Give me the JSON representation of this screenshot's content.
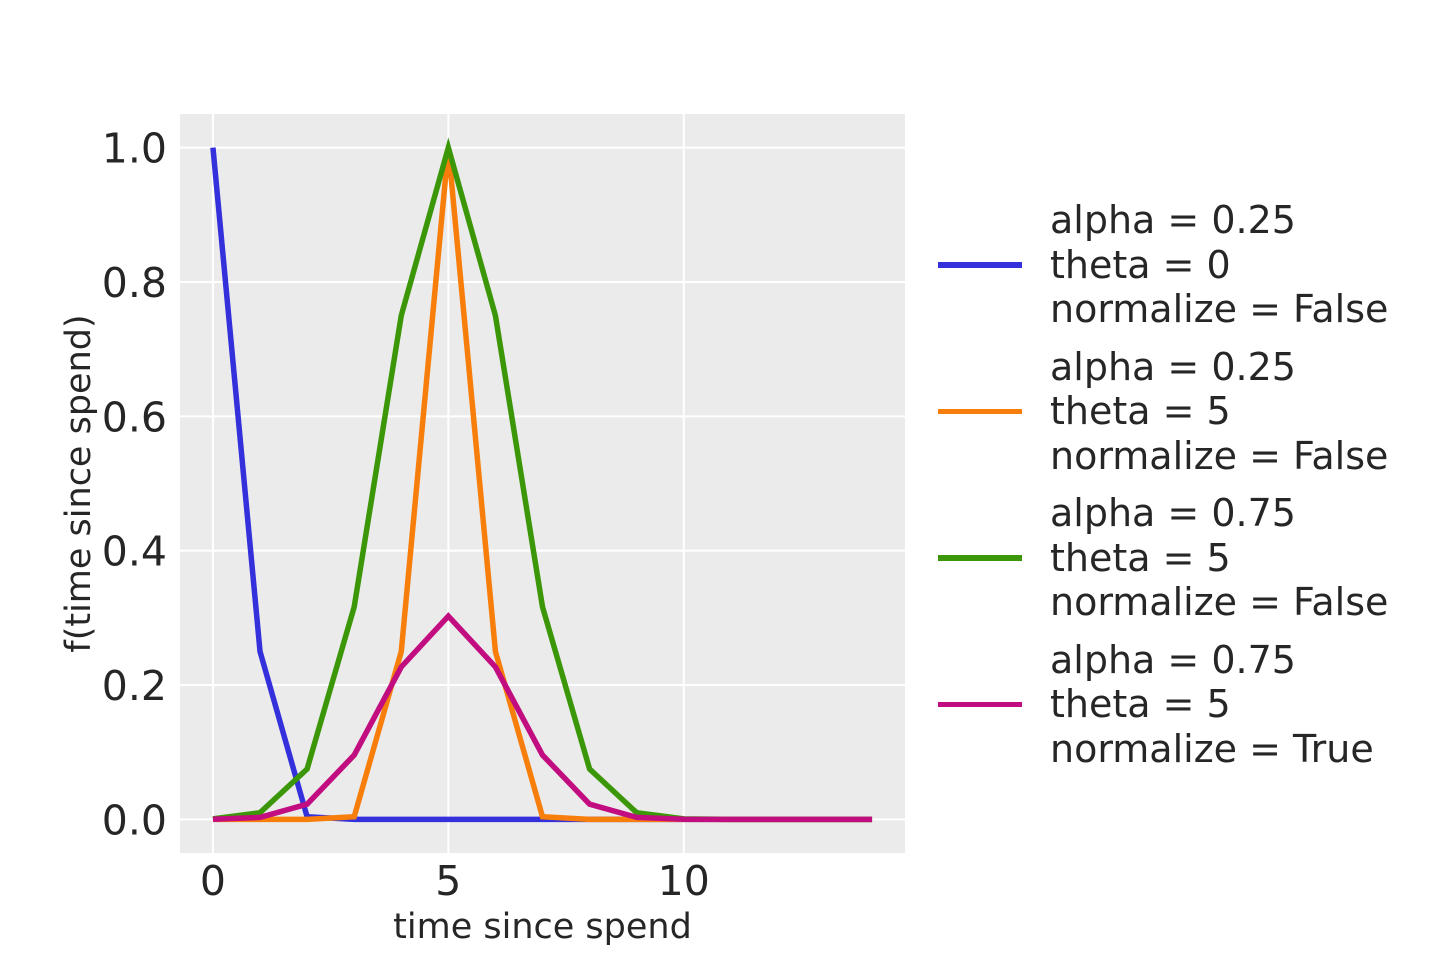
{
  "figure": {
    "background": "#ffffff",
    "plot_background": "#ebebeb",
    "grid_color": "#ffffff",
    "text_color": "#262626"
  },
  "chart_data": {
    "type": "line",
    "x": [
      0,
      1,
      2,
      3,
      4,
      5,
      6,
      7,
      8,
      9,
      10,
      11,
      12,
      13,
      14
    ],
    "series": [
      {
        "name": "alpha = 0.25, theta = 0, normalize = False",
        "color": "#3330dc",
        "values": [
          1,
          0.25,
          0.0039,
          4e-06,
          0,
          0,
          0,
          0,
          0,
          0,
          0,
          0,
          0,
          0,
          0
        ]
      },
      {
        "name": "alpha = 0.25, theta = 5, normalize = False",
        "color": "#f87e0b",
        "values": [
          0,
          0,
          0,
          0.0039,
          0.25,
          1,
          0.25,
          0.0039,
          4e-06,
          0,
          0,
          0,
          0,
          0,
          0
        ]
      },
      {
        "name": "alpha = 0.75, theta = 5, normalize = False",
        "color": "#3b9708",
        "values": [
          0.000753,
          0.010023,
          0.075085,
          0.316406,
          0.75,
          1,
          0.75,
          0.316406,
          0.075085,
          0.010023,
          0.000753,
          3.2e-05,
          0,
          0,
          0
        ]
      },
      {
        "name": "alpha = 0.75, theta = 5, normalize = True",
        "color": "#c20d80",
        "values": [
          0.000228,
          0.003033,
          0.022722,
          0.095747,
          0.226959,
          0.302612,
          0.226959,
          0.095747,
          0.022722,
          0.003033,
          0.000228,
          1e-05,
          0,
          0,
          0
        ]
      }
    ],
    "legend": [
      {
        "lines": [
          "alpha = 0.25",
          "theta = 0",
          "normalize = False"
        ],
        "color": "#3330dc"
      },
      {
        "lines": [
          "alpha = 0.25",
          "theta = 5",
          "normalize = False"
        ],
        "color": "#f87e0b"
      },
      {
        "lines": [
          "alpha = 0.75",
          "theta = 5",
          "normalize = False"
        ],
        "color": "#3b9708"
      },
      {
        "lines": [
          "alpha = 0.75",
          "theta = 5",
          "normalize = True"
        ],
        "color": "#c20d80"
      }
    ],
    "xlabel": "time since spend",
    "ylabel": "f(time since spend)",
    "xticks": [
      0,
      5,
      10
    ],
    "xtick_labels": [
      "0",
      "5",
      "10"
    ],
    "yticks": [
      0,
      0.2,
      0.4,
      0.6,
      0.8,
      1
    ],
    "ytick_labels": [
      "0.0",
      "0.2",
      "0.4",
      "0.6",
      "0.8",
      "1.0"
    ],
    "xlim": [
      -0.7,
      14.7
    ],
    "ylim": [
      -0.05,
      1.05
    ],
    "grid": true,
    "legend_position": "right-outside"
  }
}
